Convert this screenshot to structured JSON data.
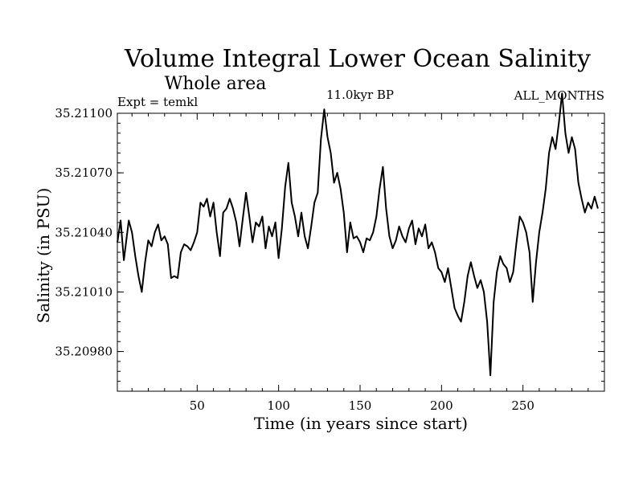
{
  "chart_data": {
    "type": "line",
    "title": "Volume Integral Lower Ocean Salinity",
    "subtitle": "Whole area",
    "annotations": {
      "left": "Expt = temkl",
      "center": "11.0kyr BP",
      "right": "ALL_MONTHS"
    },
    "xlabel": "Time (in years since start)",
    "ylabel": "Salinity (in PSU)",
    "xlim": [
      1,
      300
    ],
    "ylim": [
      35.2096,
      35.211
    ],
    "xticks": [
      50,
      100,
      150,
      200,
      250
    ],
    "yticks": [
      35.2098,
      35.2101,
      35.2104,
      35.2107,
      35.211
    ],
    "ytick_labels": [
      "35.20980",
      "35.21010",
      "35.21040",
      "35.21070",
      "35.21100"
    ],
    "x_anchor_points": [
      1,
      3,
      5,
      8,
      10,
      12,
      14,
      16,
      18,
      20,
      22,
      24,
      26,
      28,
      30,
      32,
      34,
      36,
      38,
      40,
      42,
      44,
      46,
      48,
      50,
      52,
      54,
      56,
      58,
      60,
      62,
      64,
      66,
      68,
      70,
      72,
      74,
      76,
      78,
      80,
      82,
      84,
      86,
      88,
      90,
      92,
      94,
      96,
      98,
      100,
      102,
      104,
      106,
      108,
      110,
      112,
      114,
      116,
      118,
      120,
      122,
      124,
      126,
      128,
      130,
      132,
      134,
      136,
      138,
      140,
      142,
      144,
      146,
      148,
      150,
      152,
      154,
      156,
      158,
      160,
      162,
      164,
      166,
      168,
      170,
      172,
      174,
      176,
      178,
      180,
      182,
      184,
      186,
      188,
      190,
      192,
      194,
      196,
      198,
      200,
      202,
      204,
      206,
      208,
      210,
      212,
      214,
      216,
      218,
      220,
      222,
      224,
      226,
      228,
      230,
      232,
      234,
      236,
      238,
      240,
      242,
      244,
      246,
      248,
      250,
      252,
      254,
      256,
      258,
      260,
      262,
      264,
      266,
      268,
      270,
      272,
      274,
      276,
      278,
      280,
      282,
      284,
      286,
      288,
      290,
      292,
      294,
      296,
      298,
      300
    ],
    "series": [
      {
        "name": "salinity",
        "values": [
          35.21035,
          35.21046,
          35.21026,
          35.21046,
          35.2104,
          35.21028,
          35.21018,
          35.2101,
          35.21025,
          35.21036,
          35.21033,
          35.2104,
          35.21044,
          35.21036,
          35.21038,
          35.21034,
          35.21017,
          35.21018,
          35.21017,
          35.2103,
          35.21034,
          35.21033,
          35.21031,
          35.21035,
          35.2104,
          35.21055,
          35.21053,
          35.21057,
          35.21048,
          35.21055,
          35.2104,
          35.21028,
          35.2105,
          35.21052,
          35.21057,
          35.21052,
          35.21045,
          35.21033,
          35.21047,
          35.2106,
          35.21048,
          35.21035,
          35.21045,
          35.21043,
          35.21048,
          35.21032,
          35.21043,
          35.21038,
          35.21045,
          35.21027,
          35.21042,
          35.21063,
          35.21075,
          35.21055,
          35.21048,
          35.21038,
          35.2105,
          35.21038,
          35.21032,
          35.21043,
          35.21055,
          35.2106,
          35.21087,
          35.21102,
          35.21088,
          35.2108,
          35.21065,
          35.2107,
          35.21062,
          35.2105,
          35.2103,
          35.21045,
          35.21037,
          35.21038,
          35.21035,
          35.2103,
          35.21037,
          35.21036,
          35.2104,
          35.21048,
          35.21062,
          35.21073,
          35.21052,
          35.21038,
          35.21032,
          35.21036,
          35.21043,
          35.21038,
          35.21035,
          35.21042,
          35.21046,
          35.21034,
          35.21042,
          35.21038,
          35.21044,
          35.21032,
          35.21035,
          35.2103,
          35.21022,
          35.2102,
          35.21015,
          35.21022,
          35.21012,
          35.21002,
          35.20998,
          35.20995,
          35.21005,
          35.21018,
          35.21025,
          35.21018,
          35.21012,
          35.21016,
          35.2101,
          35.20995,
          35.20968,
          35.21005,
          35.2102,
          35.21028,
          35.21024,
          35.21022,
          35.21015,
          35.2102,
          35.21035,
          35.21048,
          35.21045,
          35.2104,
          35.2103,
          35.21005,
          35.21025,
          35.2104,
          35.2105,
          35.21062,
          35.2108,
          35.21088,
          35.21082,
          35.21095,
          35.2111,
          35.2109,
          35.2108,
          35.21088,
          35.21082,
          35.21065,
          35.21057,
          35.2105,
          35.21055,
          35.21052,
          35.21058,
          35.21052
        ]
      }
    ]
  }
}
